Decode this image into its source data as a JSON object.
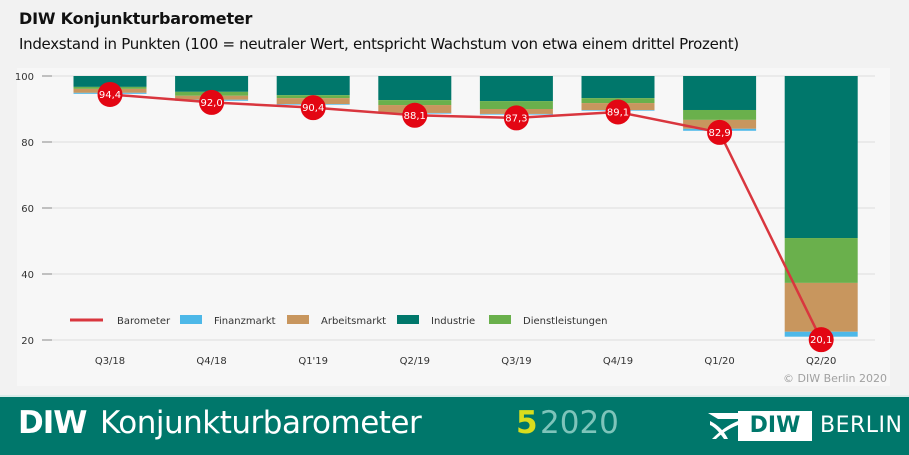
{
  "header": {
    "title": "DIW Konjunkturbarometer",
    "subtitle": "Indexstand in Punkten (100 = neutraler Wert, entspricht Wachstum von etwa einem drittel Prozent)"
  },
  "copyright": "© DIW Berlin 2020",
  "footer": {
    "brand": "DIW",
    "name": "Konjunkturbarometer",
    "issue": "5",
    "year": "2020",
    "logo_box": "DIW",
    "logo_text": "BERLIN"
  },
  "colors": {
    "barometer": "#d9363e",
    "marker": "#e30613",
    "finanzmarkt": "#4db8e8",
    "arbeitsmarkt": "#c8965e",
    "industrie": "#00776b",
    "dienstleistungen": "#6ab04c",
    "footer_bg": "#00776b",
    "issue_accent": "#d9dd1d"
  },
  "chart_data": {
    "type": "bar",
    "title": "DIW Konjunkturbarometer",
    "subtitle": "Indexstand in Punkten (100 = neutraler Wert, entspricht Wachstum von etwa einem drittel Prozent)",
    "xlabel": "",
    "ylabel": "",
    "ylim": [
      20,
      100
    ],
    "yticks": [
      100,
      80,
      60,
      40,
      20
    ],
    "grid": true,
    "legend_position": "bottom-inside",
    "categories": [
      "Q3/18",
      "Q4/18",
      "Q1'19",
      "Q2/19",
      "Q3/19",
      "Q4/19",
      "Q1/20",
      "Q2/20"
    ],
    "note": "Stacked bars hang downward from 100 showing each component's negative contribution; line shows barometer index value.",
    "series": [
      {
        "name": "Barometer",
        "type": "line",
        "values": [
          94.4,
          92.0,
          90.4,
          88.1,
          87.3,
          89.1,
          82.9,
          20.1
        ]
      },
      {
        "name": "Finanzmarkt",
        "type": "bar",
        "values": [
          0.3,
          0.3,
          0.2,
          0.2,
          0.2,
          0.2,
          0.6,
          1.5
        ]
      },
      {
        "name": "Arbeitsmarkt",
        "type": "bar",
        "values": [
          1.2,
          1.2,
          1.8,
          2.4,
          1.5,
          2.1,
          2.7,
          14.8
        ]
      },
      {
        "name": "Industrie",
        "type": "bar",
        "values": [
          3.3,
          4.8,
          5.8,
          7.3,
          7.6,
          6.7,
          10.3,
          49.1
        ]
      },
      {
        "name": "Dienstleistungen",
        "type": "bar",
        "values": [
          0.6,
          1.2,
          0.9,
          1.5,
          2.4,
          1.5,
          3.0,
          13.6
        ]
      }
    ],
    "labels": [
      "94,4",
      "92,0",
      "90,4",
      "88,1",
      "87,3",
      "89,1",
      "82,9",
      "20,1"
    ],
    "legend": [
      "Barometer",
      "Finanzmarkt",
      "Arbeitsmarkt",
      "Industrie",
      "Dienstleistungen"
    ]
  }
}
